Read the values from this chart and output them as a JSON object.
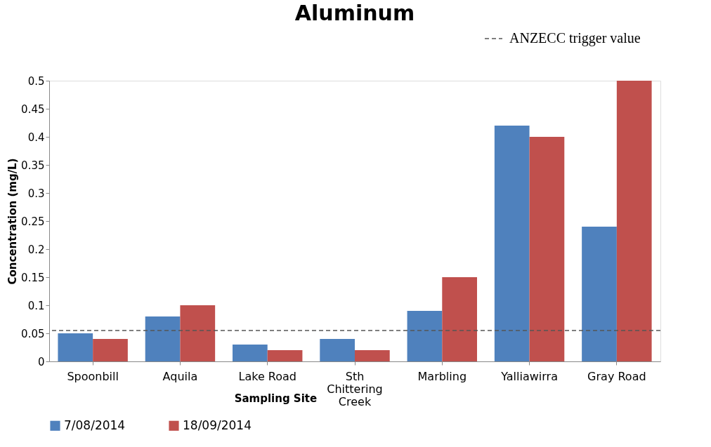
{
  "chart_data": {
    "type": "bar",
    "title": "Aluminum",
    "xlabel": "Sampling Site",
    "ylabel": "Concentration (mg/L)",
    "categories": [
      "Spoonbill",
      "Aquila",
      "Lake Road",
      "Sth Chittering Creek",
      "Marbling",
      "Yalliawirra",
      "Gray Road"
    ],
    "series": [
      {
        "name": "7/08/2014",
        "color": "#4f81bd",
        "values": [
          0.05,
          0.08,
          0.03,
          0.04,
          0.09,
          0.42,
          0.24
        ]
      },
      {
        "name": "18/09/2014",
        "color": "#c0504d",
        "values": [
          0.04,
          0.1,
          0.02,
          0.02,
          0.15,
          0.4,
          0.5
        ]
      }
    ],
    "ylim": [
      0,
      0.5
    ],
    "yticks": [
      0,
      0.05,
      0.1,
      0.15,
      0.2,
      0.25,
      0.3,
      0.35,
      0.4,
      0.45,
      0.5
    ],
    "ref_lines": [
      {
        "axis": "y",
        "value": 0.055,
        "label": "ANZECC trigger value",
        "color": "#555555",
        "line_style": "dashed"
      }
    ],
    "grid": false,
    "legend": "bottom"
  }
}
